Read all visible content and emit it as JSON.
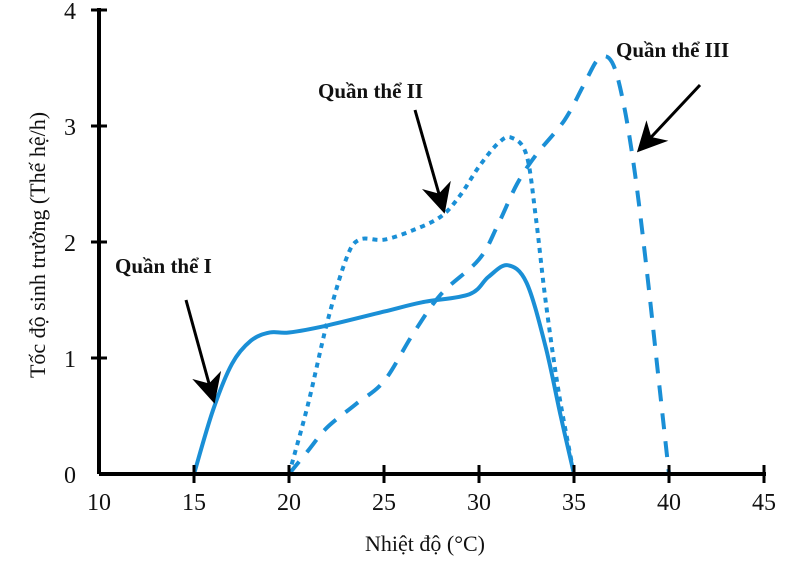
{
  "chart_data": {
    "type": "line",
    "title": "",
    "xlabel": "Nhiệt độ (°C)",
    "ylabel": "Tốc độ sinh trưởng (Thế hệ/h)",
    "xlim": [
      10,
      45
    ],
    "ylim": [
      0,
      4
    ],
    "xticks": [
      "10",
      "15",
      "20",
      "25",
      "30",
      "35",
      "40",
      "45"
    ],
    "yticks": [
      "0",
      "1",
      "2",
      "3",
      "4"
    ],
    "grid": false,
    "legend": "none (direct annotations with arrows)",
    "line_color": "#1a8fd6",
    "series": [
      {
        "name": "Quần thể I",
        "style": "solid",
        "x": [
          15,
          16,
          17,
          18,
          19,
          20,
          22,
          25,
          27,
          29.5,
          30.5,
          31.5,
          32.5,
          33.5,
          34.3,
          35
        ],
        "y": [
          0,
          0.55,
          0.95,
          1.15,
          1.22,
          1.22,
          1.28,
          1.4,
          1.48,
          1.55,
          1.7,
          1.8,
          1.65,
          1.1,
          0.5,
          0
        ]
      },
      {
        "name": "Quần thể II",
        "style": "dotted",
        "x": [
          20,
          21,
          22,
          23,
          23.7,
          25,
          26.5,
          28,
          29,
          30,
          31,
          31.7,
          32.5,
          33,
          33.5,
          34.2,
          35
        ],
        "y": [
          0,
          0.6,
          1.3,
          1.85,
          2.02,
          2.02,
          2.1,
          2.22,
          2.4,
          2.65,
          2.85,
          2.9,
          2.75,
          2.2,
          1.5,
          0.7,
          0
        ]
      },
      {
        "name": "Quần thể III",
        "style": "dashed",
        "x": [
          20,
          21,
          22,
          23.5,
          25,
          26.5,
          28,
          30,
          31,
          32,
          33,
          34.5,
          35.5,
          36.3,
          37,
          37.6,
          38.2,
          38.8,
          39.4,
          40
        ],
        "y": [
          0,
          0.2,
          0.4,
          0.6,
          0.8,
          1.2,
          1.55,
          1.85,
          2.15,
          2.5,
          2.75,
          3.05,
          3.35,
          3.58,
          3.55,
          3.2,
          2.6,
          1.8,
          0.9,
          0
        ]
      }
    ],
    "annotations": [
      {
        "text": "Quần thể I",
        "points_to": [
          16.2,
          0.6
        ]
      },
      {
        "text": "Quần thể II",
        "points_to": [
          28,
          2.25
        ]
      },
      {
        "text": "Quần thể III",
        "points_to": [
          38,
          2.8
        ]
      }
    ]
  }
}
